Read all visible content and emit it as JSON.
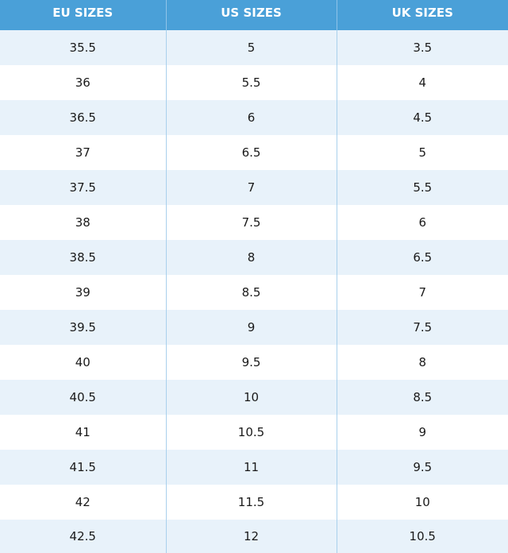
{
  "table": {
    "headers": [
      "EU SIZES",
      "US SIZES",
      "UK SIZES"
    ],
    "rows": [
      [
        "35.5",
        "5",
        "3.5"
      ],
      [
        "36",
        "5.5",
        "4"
      ],
      [
        "36.5",
        "6",
        "4.5"
      ],
      [
        "37",
        "6.5",
        "5"
      ],
      [
        "37.5",
        "7",
        "5.5"
      ],
      [
        "38",
        "7.5",
        "6"
      ],
      [
        "38.5",
        "8",
        "6.5"
      ],
      [
        "39",
        "8.5",
        "7"
      ],
      [
        "39.5",
        "9",
        "7.5"
      ],
      [
        "40",
        "9.5",
        "8"
      ],
      [
        "40.5",
        "10",
        "8.5"
      ],
      [
        "41",
        "10.5",
        "9"
      ],
      [
        "41.5",
        "11",
        "9.5"
      ],
      [
        "42",
        "11.5",
        "10"
      ],
      [
        "42.5",
        "12",
        "10.5"
      ]
    ]
  },
  "colors": {
    "header_background": "#4aa0d8",
    "header_text": "#ffffff",
    "row_alt_background": "#e8f2fa",
    "row_background": "#ffffff",
    "divider": "#a9d0ec"
  }
}
